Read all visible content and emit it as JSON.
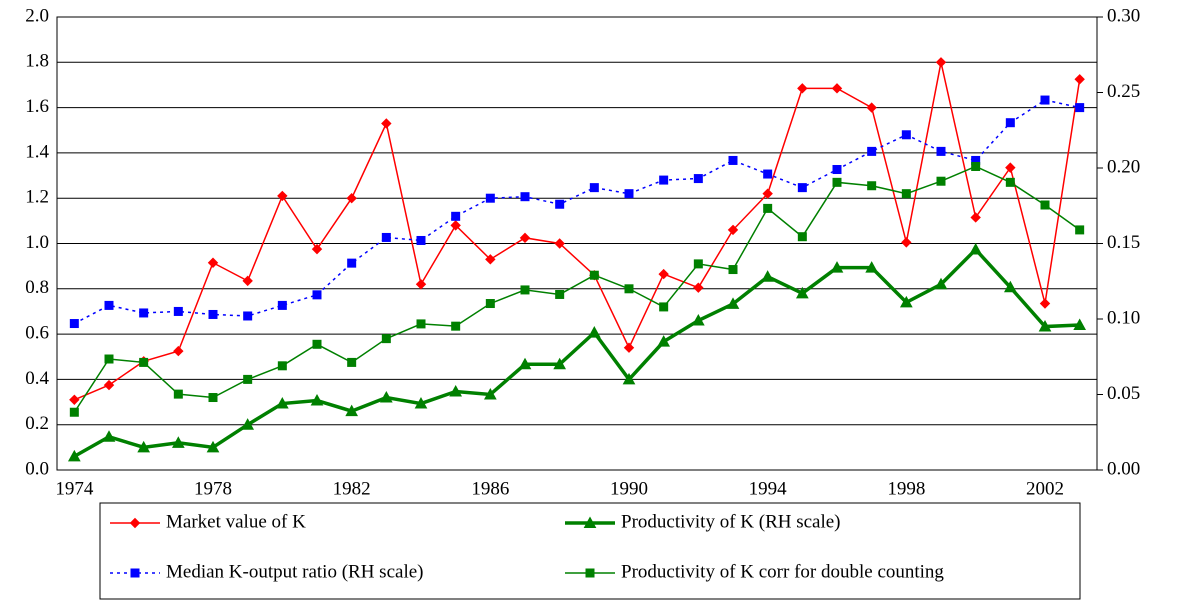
{
  "chart_data": {
    "type": "line",
    "categories": [
      "1974",
      null,
      null,
      null,
      "1978",
      null,
      null,
      null,
      "1982",
      null,
      null,
      null,
      "1986",
      null,
      null,
      null,
      "1990",
      null,
      null,
      null,
      "1994",
      null,
      null,
      null,
      "1998",
      null,
      null,
      null,
      "2002",
      null
    ],
    "series": [
      {
        "name": "Market value of K",
        "color": "#ff0000",
        "marker": "diamond",
        "dash": "solid",
        "width": 1.5,
        "axis": "y",
        "values": [
          0.31,
          0.375,
          0.48,
          0.525,
          0.915,
          0.835,
          1.21,
          0.975,
          1.2,
          1.53,
          0.82,
          1.08,
          0.93,
          1.025,
          1.0,
          0.86,
          0.54,
          0.865,
          0.805,
          1.06,
          1.22,
          1.685,
          1.685,
          1.6,
          1.005,
          1.8,
          1.115,
          1.335,
          0.735,
          1.725
        ]
      },
      {
        "name": "Median K-output ratio (RH scale)",
        "color": "#0000ff",
        "marker": "square",
        "dash": "dotted",
        "width": 1.5,
        "axis": "y2",
        "values": [
          0.097,
          0.109,
          0.104,
          0.105,
          0.103,
          0.102,
          0.109,
          0.116,
          0.137,
          0.154,
          0.152,
          0.168,
          0.18,
          0.181,
          0.176,
          0.187,
          0.183,
          0.192,
          0.193,
          0.205,
          0.196,
          0.187,
          0.199,
          0.211,
          0.222,
          0.211,
          0.205,
          0.23,
          0.245,
          0.24
        ]
      },
      {
        "name": "Productivity of K (RH scale)",
        "color": "#008000",
        "marker": "triangle",
        "dash": "solid",
        "width": 3.5,
        "axis": "y2",
        "values": [
          0.009,
          0.022,
          0.015,
          0.018,
          0.015,
          0.03,
          0.044,
          0.046,
          0.039,
          0.048,
          0.044,
          0.052,
          0.05,
          0.07,
          0.07,
          0.091,
          0.06,
          0.085,
          0.099,
          0.11,
          0.128,
          0.117,
          0.134,
          0.134,
          0.111,
          0.123,
          0.146,
          0.121,
          0.095,
          0.096
        ]
      },
      {
        "name": "Productivity of K corr for double counting",
        "color": "#008000",
        "marker": "square",
        "dash": "solid",
        "width": 1.5,
        "axis": "y",
        "values": [
          0.255,
          0.49,
          0.475,
          0.335,
          0.32,
          0.4,
          0.46,
          0.555,
          0.475,
          0.58,
          0.645,
          0.635,
          0.735,
          0.795,
          0.775,
          0.86,
          0.8,
          0.72,
          0.91,
          0.885,
          1.155,
          1.03,
          1.27,
          1.255,
          1.22,
          1.275,
          1.34,
          1.27,
          1.17,
          1.06
        ]
      }
    ],
    "ylim": [
      0,
      2
    ],
    "yticks": [
      {
        "value": 0,
        "label": "0.0"
      },
      0.2,
      0.4,
      0.6,
      0.8,
      {
        "value": 1,
        "label": "1.0"
      },
      1.2,
      1.4,
      1.6,
      1.8,
      {
        "value": 2,
        "label": "2.0"
      }
    ],
    "y2lim": [
      0,
      0.3
    ],
    "y2ticks": [
      {
        "value": 0,
        "label": "0.00"
      },
      0.05,
      {
        "value": 0.1,
        "label": "0.10"
      },
      0.15,
      {
        "value": 0.2,
        "label": "0.20"
      },
      0.25,
      {
        "value": 0.3,
        "label": "0.30"
      }
    ],
    "grid": true,
    "legend": "bottom"
  }
}
